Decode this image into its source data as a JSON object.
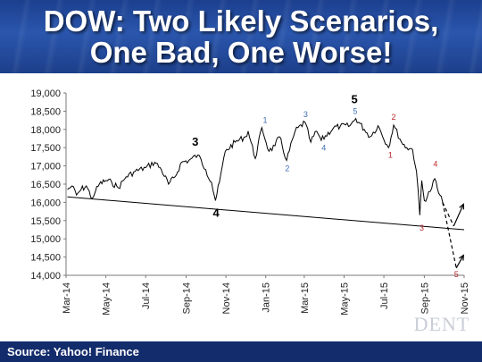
{
  "header": {
    "title_line1": "DOW: Two Likely Scenarios,",
    "title_line2": "One Bad, One Worse!"
  },
  "footer": {
    "source": "Source: Yahoo! Finance"
  },
  "logo_text": "DENT",
  "colors": {
    "banner": "#2a56ad",
    "footer": "#132c6b",
    "price_line": "#000000",
    "blue_wave": "#3e6fb5",
    "red_wave": "#c0282d"
  },
  "chart_data": {
    "type": "line",
    "title": "DOW: Two Likely Scenarios, One Bad, One Worse!",
    "xlabel": "",
    "ylabel": "",
    "ylim": [
      14000,
      19000
    ],
    "y_ticks": [
      "14,000",
      "14,500",
      "15,000",
      "15,500",
      "16,000",
      "16,500",
      "17,000",
      "17,500",
      "18,000",
      "18,500",
      "19,000"
    ],
    "x_ticks": [
      "Mar-14",
      "May-14",
      "Jul-14",
      "Sep-14",
      "Nov-14",
      "Jan-15",
      "Mar-15",
      "May-15",
      "Jul-15",
      "Sep-15",
      "Nov-15"
    ],
    "grid": false,
    "series": [
      {
        "values": [
          [
            "2014-03-03",
            16350
          ],
          [
            "2014-03-10",
            16450
          ],
          [
            "2014-03-17",
            16200
          ],
          [
            "2014-03-24",
            16350
          ],
          [
            "2014-04-01",
            16450
          ],
          [
            "2014-04-10",
            16100
          ],
          [
            "2014-04-15",
            16300
          ],
          [
            "2014-04-21",
            16500
          ],
          [
            "2014-05-01",
            16600
          ],
          [
            "2014-05-10",
            16550
          ],
          [
            "2014-05-20",
            16400
          ],
          [
            "2014-06-01",
            16700
          ],
          [
            "2014-06-15",
            16850
          ],
          [
            "2014-07-01",
            16950
          ],
          [
            "2014-07-15",
            17100
          ],
          [
            "2014-07-25",
            16900
          ],
          [
            "2014-08-05",
            16500
          ],
          [
            "2014-08-15",
            16700
          ],
          [
            "2014-08-25",
            17100
          ],
          [
            "2014-09-05",
            17150
          ],
          [
            "2014-09-19",
            17300
          ],
          [
            "2014-10-01",
            16900
          ],
          [
            "2014-10-10",
            16550
          ],
          [
            "2014-10-16",
            16050
          ],
          [
            "2014-10-22",
            16550
          ],
          [
            "2014-10-31",
            17400
          ],
          [
            "2014-11-15",
            17650
          ],
          [
            "2014-12-01",
            17800
          ],
          [
            "2014-12-05",
            17950
          ],
          [
            "2014-12-16",
            17200
          ],
          [
            "2014-12-26",
            18050
          ],
          [
            "2015-01-06",
            17400
          ],
          [
            "2015-01-15",
            17550
          ],
          [
            "2015-01-22",
            17800
          ],
          [
            "2015-02-02",
            17150
          ],
          [
            "2015-02-15",
            17950
          ],
          [
            "2015-03-02",
            18200
          ],
          [
            "2015-03-11",
            17650
          ],
          [
            "2015-03-20",
            17950
          ],
          [
            "2015-03-27",
            17700
          ],
          [
            "2015-04-15",
            18050
          ],
          [
            "2015-04-25",
            18080
          ],
          [
            "2015-05-10",
            18100
          ],
          [
            "2015-05-19",
            18300
          ],
          [
            "2015-06-01",
            18000
          ],
          [
            "2015-06-10",
            17800
          ],
          [
            "2015-06-22",
            18100
          ],
          [
            "2015-07-08",
            17500
          ],
          [
            "2015-07-16",
            18120
          ],
          [
            "2015-07-28",
            17650
          ],
          [
            "2015-08-05",
            17500
          ],
          [
            "2015-08-14",
            17450
          ],
          [
            "2015-08-20",
            16850
          ],
          [
            "2015-08-25",
            15650
          ],
          [
            "2015-08-28",
            16600
          ],
          [
            "2015-09-01",
            16050
          ],
          [
            "2015-09-10",
            16300
          ],
          [
            "2015-09-17",
            16650
          ],
          [
            "2015-09-23",
            16250
          ],
          [
            "2015-09-29",
            16000
          ]
        ]
      }
    ],
    "trendline": {
      "from": [
        "2014-03-03",
        16150
      ],
      "to": [
        "2015-11-01",
        15250
      ]
    },
    "projections": [
      {
        "scenario": "bad",
        "path": [
          [
            "2015-09-29",
            16000
          ],
          [
            "2015-10-16",
            15350
          ],
          [
            "2015-10-31",
            15950
          ]
        ]
      },
      {
        "scenario": "worse",
        "path": [
          [
            "2015-09-29",
            16000
          ],
          [
            "2015-10-20",
            14200
          ],
          [
            "2015-10-31",
            14550
          ]
        ]
      }
    ],
    "wave_labels": [
      {
        "text": "3",
        "x": "2014-09-15",
        "y": 17550,
        "color": "black"
      },
      {
        "text": "4",
        "x": "2014-10-17",
        "y": 15600,
        "color": "black"
      },
      {
        "text": "5",
        "x": "2015-05-17",
        "y": 18720,
        "color": "black"
      },
      {
        "text": "1",
        "x": "2014-12-31",
        "y": 18180,
        "color": "blue"
      },
      {
        "text": "2",
        "x": "2015-02-03",
        "y": 16860,
        "color": "blue"
      },
      {
        "text": "3",
        "x": "2015-03-03",
        "y": 18340,
        "color": "blue"
      },
      {
        "text": "4",
        "x": "2015-03-31",
        "y": 17420,
        "color": "blue"
      },
      {
        "text": "5",
        "x": "2015-05-18",
        "y": 18420,
        "color": "blue"
      },
      {
        "text": "2",
        "x": "2015-07-16",
        "y": 18260,
        "color": "red"
      },
      {
        "text": "1",
        "x": "2015-07-11",
        "y": 17220,
        "color": "red"
      },
      {
        "text": "3",
        "x": "2015-08-28",
        "y": 15220,
        "color": "red"
      },
      {
        "text": "4",
        "x": "2015-09-18",
        "y": 16980,
        "color": "red"
      },
      {
        "text": "5",
        "x": "2015-10-20",
        "y": 13950,
        "color": "red"
      }
    ]
  }
}
